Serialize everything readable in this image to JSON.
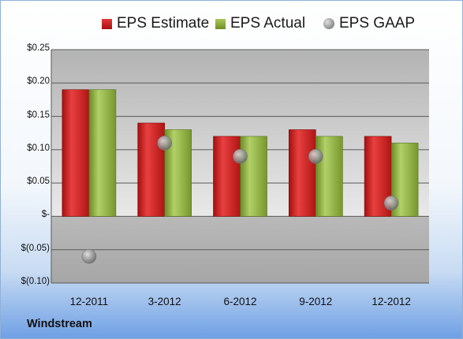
{
  "chart_data": {
    "type": "bar",
    "categories": [
      "12-2011",
      "3-2012",
      "6-2012",
      "9-2012",
      "12-2012"
    ],
    "series": [
      {
        "name": "EPS Estimate",
        "type": "bar",
        "color": "#c81e1e",
        "values": [
          0.19,
          0.14,
          0.12,
          0.13,
          0.12
        ]
      },
      {
        "name": "EPS Actual",
        "type": "bar",
        "color": "#8bab3d",
        "values": [
          0.19,
          0.13,
          0.12,
          0.12,
          0.11
        ]
      },
      {
        "name": "EPS GAAP",
        "type": "scatter",
        "color": "#999999",
        "values": [
          -0.06,
          0.11,
          0.09,
          0.09,
          0.02
        ]
      }
    ],
    "ylim": [
      -0.1,
      0.25
    ],
    "yticks": [
      0.25,
      0.2,
      0.15,
      0.1,
      0.05,
      0,
      -0.05,
      -0.1
    ],
    "ytick_labels": [
      "$0.25",
      "$0.20",
      "$0.15",
      "$0.10",
      "$0.05",
      "$-",
      "$(0.05)",
      "$(0.10)"
    ],
    "grid": true,
    "legend_position": "top"
  },
  "footer": {
    "company": "Windstream"
  }
}
